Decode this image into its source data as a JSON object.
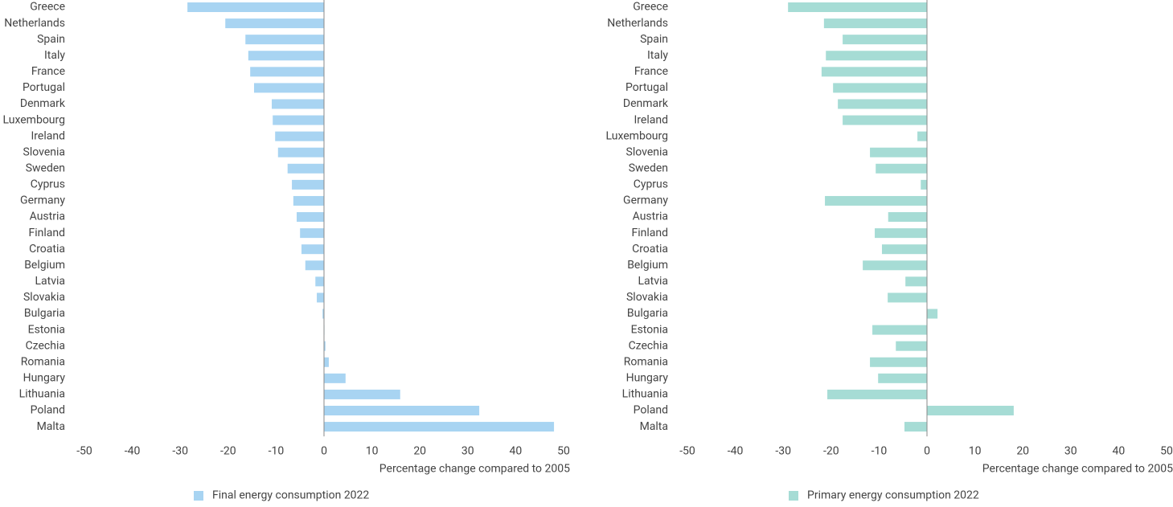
{
  "chart_data": [
    {
      "type": "bar",
      "orientation": "horizontal",
      "categories": [
        "Greece",
        "Netherlands",
        "Spain",
        "Italy",
        "France",
        "Portugal",
        "Denmark",
        "Luxembourg",
        "Ireland",
        "Slovenia",
        "Sweden",
        "Cyprus",
        "Germany",
        "Austria",
        "Finland",
        "Croatia",
        "Belgium",
        "Latvia",
        "Slovakia",
        "Bulgaria",
        "Estonia",
        "Czechia",
        "Romania",
        "Hungary",
        "Lithuania",
        "Poland",
        "Malta"
      ],
      "series": [
        {
          "name": "Final energy consumption 2022",
          "color": "#a8d4f2",
          "values": [
            -28.5,
            -20.6,
            -16.4,
            -15.8,
            -15.4,
            -14.6,
            -10.9,
            -10.7,
            -10.2,
            -9.6,
            -7.6,
            -6.7,
            -6.4,
            -5.7,
            -5.0,
            -4.7,
            -3.9,
            -1.8,
            -1.5,
            -0.3,
            0.1,
            0.3,
            1.0,
            4.5,
            15.9,
            32.4,
            48.0
          ]
        }
      ],
      "xlim": [
        -50,
        50
      ],
      "xticks": [
        -50,
        -40,
        -30,
        -20,
        -10,
        0,
        10,
        20,
        30,
        40,
        50
      ],
      "xlabel": "Percentage change compared to 2005"
    },
    {
      "type": "bar",
      "orientation": "horizontal",
      "categories": [
        "Greece",
        "Netherlands",
        "Spain",
        "Italy",
        "France",
        "Portugal",
        "Denmark",
        "Ireland",
        "Luxembourg",
        "Slovenia",
        "Sweden",
        "Cyprus",
        "Germany",
        "Austria",
        "Finland",
        "Croatia",
        "Belgium",
        "Latvia",
        "Slovakia",
        "Bulgaria",
        "Estonia",
        "Czechia",
        "Romania",
        "Hungary",
        "Lithuania",
        "Poland",
        "Malta"
      ],
      "series": [
        {
          "name": "Primary energy consumption 2022",
          "color": "#a6dcd5",
          "values": [
            -29.0,
            -21.5,
            -17.6,
            -21.1,
            -22.0,
            -19.6,
            -18.6,
            -17.6,
            -2.0,
            -11.9,
            -10.7,
            -1.3,
            -21.3,
            -8.1,
            -10.9,
            -9.4,
            -13.4,
            -4.5,
            -8.2,
            2.2,
            -11.4,
            -6.5,
            -11.9,
            -10.2,
            -20.8,
            18.1,
            -4.7
          ]
        }
      ],
      "xlim": [
        -50,
        50
      ],
      "xticks": [
        -50,
        -40,
        -30,
        -20,
        -10,
        0,
        10,
        20,
        30,
        40,
        50
      ],
      "xlabel": "Percentage change compared to 2005"
    }
  ]
}
